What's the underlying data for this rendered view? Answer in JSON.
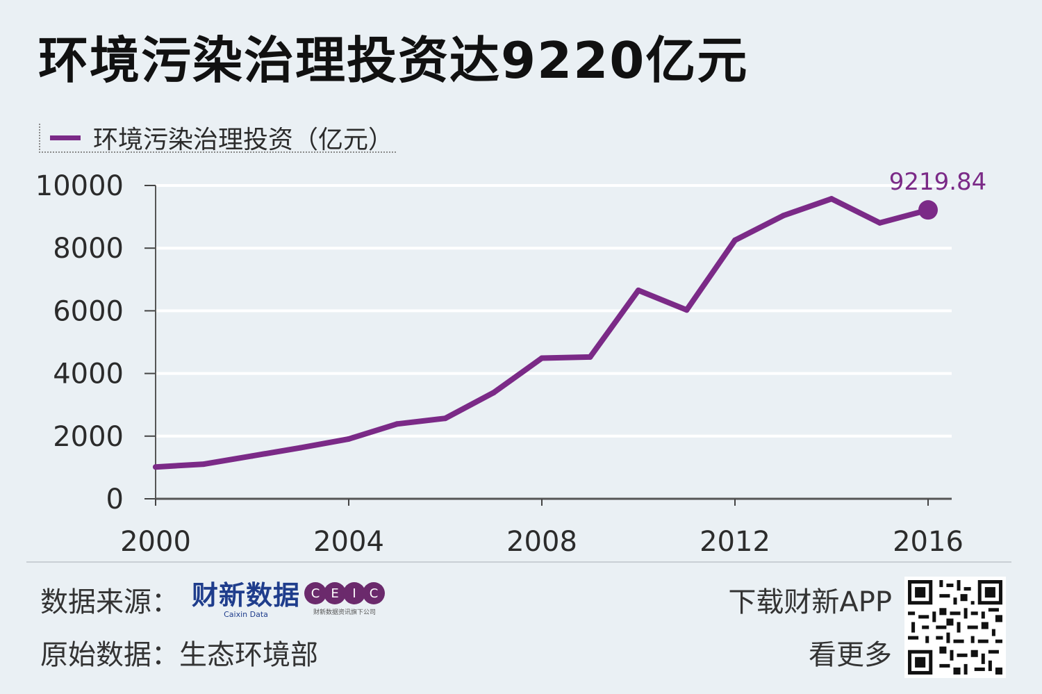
{
  "title": "环境污染治理投资达9220亿元",
  "legend": {
    "label": "环境污染治理投资（亿元）",
    "color": "#7b2a87"
  },
  "chart_data": {
    "type": "line",
    "series": [
      {
        "name": "环境污染治理投资（亿元）",
        "x": [
          2000,
          2001,
          2002,
          2003,
          2004,
          2005,
          2006,
          2007,
          2008,
          2009,
          2010,
          2011,
          2012,
          2013,
          2014,
          2015,
          2016
        ],
        "values": [
          1015,
          1107,
          1367,
          1627,
          1909,
          2388,
          2567,
          3387,
          4490,
          4525,
          6654,
          6026,
          8253,
          9037,
          9575,
          8806,
          9219.84
        ]
      }
    ],
    "ylim": [
      0,
      10000
    ],
    "xlim": [
      2000,
      2016
    ],
    "yticks": [
      "0",
      "2000",
      "4000",
      "6000",
      "8000",
      "10000"
    ],
    "xticks": [
      "2000",
      "2004",
      "2008",
      "2012",
      "2016"
    ],
    "annotation": "9219.84",
    "grid": true,
    "line_color": "#7b2a87"
  },
  "footer": {
    "source_label": "数据来源：",
    "brand_main": "财新数据",
    "brand_sub": "Caixin Data",
    "ceic_letters": [
      "C",
      "E",
      "I",
      "C"
    ],
    "ceic_sub": "财新数据资讯旗下公司",
    "original_label": "原始数据：",
    "original_value": "生态环境部",
    "app_line1": "下载财新APP",
    "app_line2": "看更多"
  }
}
